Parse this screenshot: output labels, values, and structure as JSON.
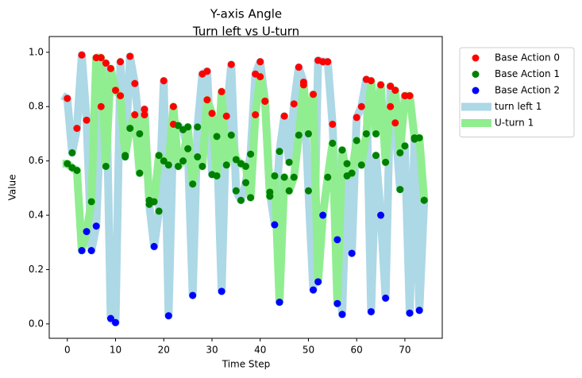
{
  "chart_data": {
    "type": "line-scatter",
    "title": "Y-axis Angle",
    "subtitle": "Turn left vs U-turn",
    "x_label": "Time Step",
    "y_label": "Value",
    "xlim": [
      -3.75,
      77.75
    ],
    "ylim": [
      -0.053,
      1.058
    ],
    "xticks": [
      0,
      10,
      20,
      30,
      40,
      50,
      60,
      70
    ],
    "yticks": [
      {
        "value": 0,
        "label": "0.0"
      },
      0.2,
      0.4,
      0.6,
      0.8,
      {
        "value": 1,
        "label": "1.0"
      }
    ],
    "legend": "outside-upper-right",
    "x": [
      -1,
      0,
      1,
      2,
      3,
      4,
      5,
      6,
      7,
      8,
      9,
      10,
      11,
      12,
      13,
      14,
      15,
      16,
      17,
      18,
      19,
      20,
      21,
      22,
      23,
      24,
      25,
      26,
      27,
      28,
      29,
      30,
      31,
      32,
      33,
      34,
      35,
      36,
      37,
      38,
      39,
      40,
      41,
      42,
      43,
      44,
      45,
      46,
      47,
      48,
      49,
      50,
      51,
      52,
      53,
      54,
      55,
      56,
      57,
      58,
      59,
      60,
      61,
      62,
      63,
      64,
      65,
      66,
      67,
      68,
      69,
      70,
      71,
      72,
      73,
      74
    ],
    "scatter": [
      {
        "name": "Base Action 0",
        "color": "#ff0000"
      },
      {
        "name": "Base Action 1",
        "color": "#008000"
      },
      {
        "name": "Base Action 2",
        "color": "#0000ff"
      }
    ],
    "series": [
      {
        "name": "turn left 1",
        "color": "#add8e6",
        "values": [
          0.84,
          0.83,
          0.63,
          0.72,
          0.99,
          0.75,
          0.27,
          0.36,
          0.8,
          0.96,
          0.02,
          0.005,
          0.965,
          0.615,
          0.985,
          0.885,
          0.7,
          0.79,
          0.44,
          0.285,
          0.415,
          0.895,
          0.03,
          0.735,
          0.73,
          0.715,
          0.645,
          0.105,
          0.725,
          0.92,
          0.93,
          0.55,
          0.69,
          0.12,
          0.765,
          0.955,
          0.49,
          0.455,
          0.52,
          0.625,
          0.92,
          0.965,
          0.82,
          0.485,
          0.365,
          0.635,
          0.765,
          0.595,
          0.81,
          0.945,
          0.89,
          0.49,
          0.125,
          0.97,
          0.965,
          0.965,
          0.735,
          0.31,
          0.035,
          0.59,
          0.26,
          0.76,
          0.8,
          0.9,
          0.045,
          0.62,
          0.4,
          0.095,
          0.875,
          0.74,
          0.495,
          0.655,
          0.04,
          0.68,
          0.05,
          0.455
        ],
        "actions": [
          null,
          0,
          1,
          0,
          0,
          0,
          2,
          2,
          0,
          0,
          2,
          2,
          0,
          1,
          0,
          0,
          1,
          0,
          1,
          2,
          1,
          0,
          2,
          0,
          1,
          1,
          1,
          2,
          1,
          0,
          0,
          1,
          1,
          2,
          0,
          0,
          1,
          1,
          1,
          1,
          0,
          0,
          0,
          1,
          2,
          1,
          0,
          1,
          0,
          0,
          0,
          1,
          2,
          0,
          0,
          0,
          0,
          2,
          2,
          1,
          2,
          0,
          0,
          0,
          2,
          1,
          2,
          2,
          0,
          0,
          1,
          1,
          2,
          1,
          2,
          1
        ]
      },
      {
        "name": "U-turn 1",
        "color": "#90ee90",
        "values": [
          0.59,
          0.59,
          0.575,
          0.565,
          0.27,
          0.34,
          0.45,
          0.98,
          0.98,
          0.58,
          0.94,
          0.86,
          0.84,
          0.62,
          0.72,
          0.77,
          0.555,
          0.77,
          0.455,
          0.45,
          0.62,
          0.6,
          0.585,
          0.8,
          0.58,
          0.6,
          0.725,
          0.515,
          0.615,
          0.58,
          0.825,
          0.775,
          0.545,
          0.855,
          0.585,
          0.695,
          0.605,
          0.59,
          0.58,
          0.465,
          0.77,
          0.91,
          0.82,
          0.47,
          0.545,
          0.08,
          0.54,
          0.49,
          0.54,
          0.695,
          0.88,
          0.7,
          0.845,
          0.155,
          0.4,
          0.54,
          0.665,
          0.075,
          0.64,
          0.545,
          0.555,
          0.675,
          0.585,
          0.7,
          0.895,
          0.7,
          0.88,
          0.595,
          0.8,
          0.86,
          0.63,
          0.84,
          0.84,
          0.685,
          0.685,
          0.455
        ],
        "actions": [
          null,
          1,
          1,
          1,
          2,
          2,
          1,
          0,
          0,
          1,
          0,
          0,
          0,
          1,
          1,
          0,
          1,
          0,
          1,
          1,
          1,
          1,
          1,
          0,
          1,
          1,
          1,
          1,
          1,
          1,
          0,
          0,
          1,
          0,
          1,
          1,
          1,
          1,
          1,
          1,
          0,
          0,
          0,
          1,
          1,
          2,
          1,
          1,
          1,
          1,
          0,
          1,
          0,
          2,
          2,
          1,
          1,
          2,
          1,
          1,
          1,
          1,
          1,
          1,
          0,
          1,
          0,
          1,
          0,
          0,
          1,
          0,
          0,
          1,
          1,
          1
        ]
      }
    ]
  }
}
